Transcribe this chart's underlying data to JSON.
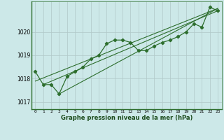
{
  "title": "Graphe pression niveau de la mer (hPa)",
  "background_color": "#cce8e8",
  "grid_color": "#b0c8c8",
  "line_color": "#2d6e2d",
  "xlim": [
    -0.5,
    23.5
  ],
  "ylim": [
    1016.7,
    1021.3
  ],
  "yticks": [
    1017,
    1018,
    1019,
    1020
  ],
  "xtick_labels": [
    "0",
    "1",
    "2",
    "3",
    "4",
    "5",
    "6",
    "7",
    "8",
    "9",
    "10",
    "11",
    "12",
    "13",
    "14",
    "15",
    "16",
    "17",
    "18",
    "19",
    "20",
    "21",
    "22",
    "23"
  ],
  "series1_x": [
    0,
    1,
    2,
    3,
    4,
    5,
    6,
    7,
    8,
    9,
    10,
    11,
    12,
    13,
    14,
    15,
    16,
    17,
    18,
    19,
    20,
    21,
    22,
    23
  ],
  "series1_y": [
    1018.3,
    1017.75,
    1017.75,
    1017.35,
    1018.1,
    1018.3,
    1018.5,
    1018.85,
    1019.0,
    1019.5,
    1019.65,
    1019.65,
    1019.55,
    1019.2,
    1019.2,
    1019.4,
    1019.55,
    1019.65,
    1019.8,
    1020.0,
    1020.35,
    1020.2,
    1021.05,
    1020.9
  ],
  "series2_x": [
    0,
    23
  ],
  "series2_y": [
    1017.9,
    1021.0
  ],
  "series3_x": [
    3,
    23
  ],
  "series3_y": [
    1017.35,
    1021.0
  ],
  "series4_x": [
    1,
    23
  ],
  "series4_y": [
    1017.75,
    1020.9
  ]
}
